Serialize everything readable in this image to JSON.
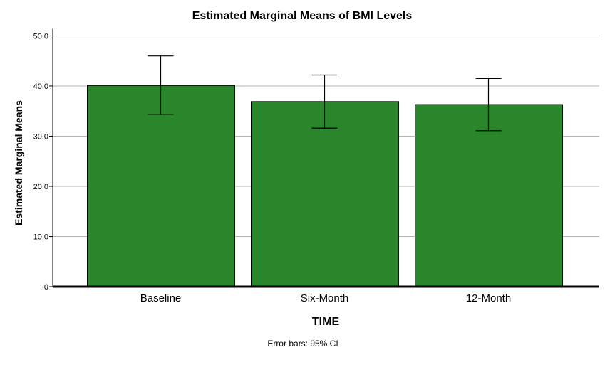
{
  "chart_data": {
    "type": "bar",
    "title": "Estimated Marginal Means of BMI Levels",
    "xlabel": "TIME",
    "ylabel": "Estimated Marginal Means",
    "categories": [
      "Baseline",
      "Six-Month",
      "12-Month"
    ],
    "values": [
      40.1,
      36.9,
      36.3
    ],
    "error_bars": {
      "lower": [
        34.3,
        31.6,
        31.1
      ],
      "upper": [
        46.0,
        42.2,
        41.5
      ]
    },
    "ylim": [
      0,
      50
    ],
    "yticks": [
      0,
      10,
      20,
      30,
      40,
      50
    ],
    "ytick_labels": [
      ".0",
      "10.0",
      "20.0",
      "30.0",
      "40.0",
      "50.0"
    ],
    "grid": true,
    "footnote": "Error bars: 95% CI",
    "colors": {
      "bar_fill": "#2a862a",
      "bar_stroke": "#000000",
      "grid": "#b3b3b3",
      "axis": "#000000"
    }
  }
}
